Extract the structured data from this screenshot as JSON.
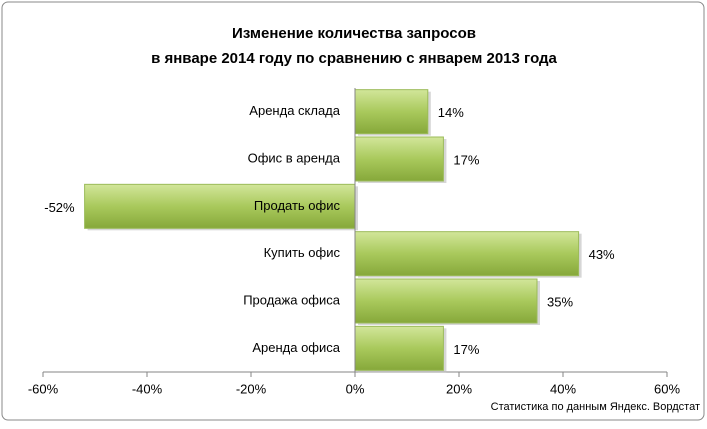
{
  "chart_data": {
    "type": "barh",
    "title": [
      "Изменение количества запросов",
      "в январе 2014 году по сравнению с январем 2013 года"
    ],
    "categories": [
      "Аренда склада",
      "Офис в аренда",
      "Продать офис",
      "Купить офис",
      "Продажа офиса",
      "Аренда офиса"
    ],
    "values": [
      14,
      17,
      -52,
      43,
      35,
      17
    ],
    "value_labels": [
      "14%",
      "17%",
      "-52%",
      "43%",
      "35%",
      "17%"
    ],
    "color": "#9bbb59",
    "xlim": [
      -60,
      60
    ],
    "xticks": [
      {
        "value": -60,
        "label": "-60%"
      },
      {
        "value": -40,
        "label": "-40%"
      },
      {
        "value": -20,
        "label": "-20%"
      },
      {
        "value": 0,
        "label": "0%"
      },
      {
        "value": 20,
        "label": "20%"
      },
      {
        "value": 40,
        "label": "40%"
      },
      {
        "value": 60,
        "label": "60%"
      }
    ],
    "source": "Статистика по данным Яндекс. Вордстат"
  }
}
